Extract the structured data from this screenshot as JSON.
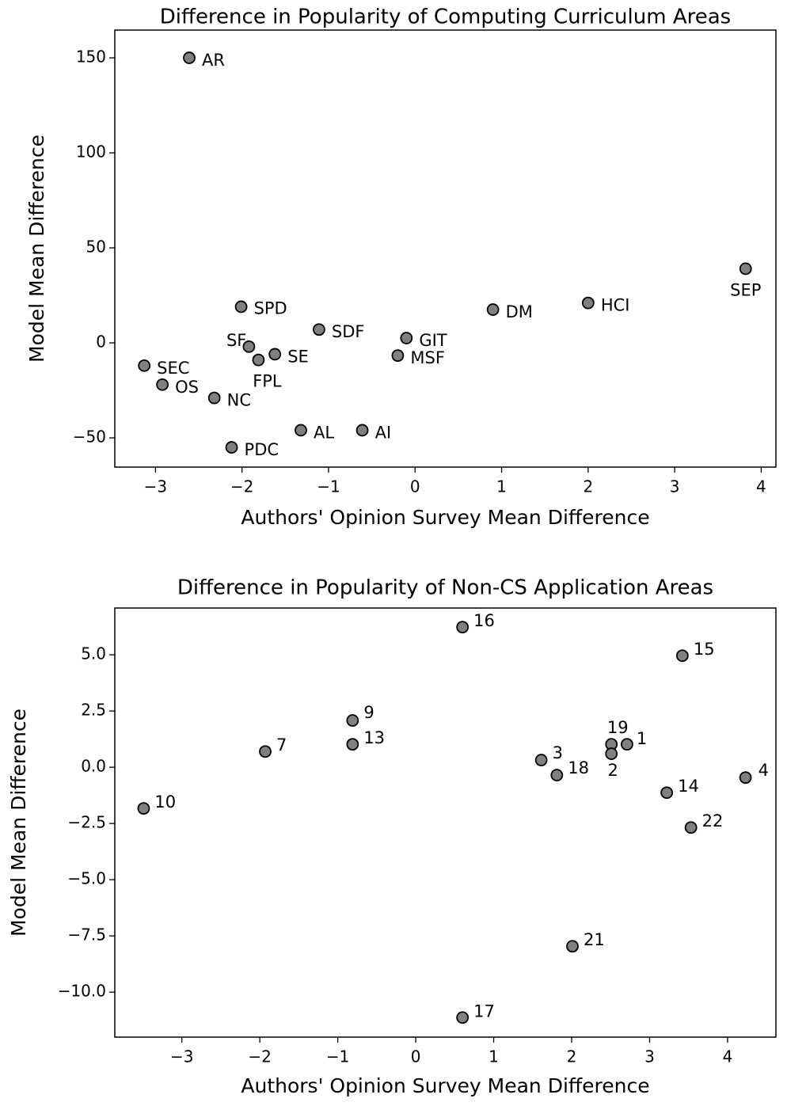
{
  "chart_data": [
    {
      "type": "scatter",
      "title": "Difference in Popularity of Computing Curriculum Areas",
      "xlabel": "Authors' Opinion Survey Mean Difference",
      "ylabel": "Model Mean Difference",
      "labels": [
        "AR",
        "SPD",
        "SDF",
        "DM",
        "HCI",
        "SEP",
        "GIT",
        "MSF",
        "SF",
        "SE",
        "FPL",
        "SEC",
        "OS",
        "NC",
        "AL",
        "AI",
        "PDC"
      ],
      "x": [
        -2.61,
        -2.01,
        -1.11,
        0.9,
        2.0,
        3.82,
        -0.1,
        -0.2,
        -1.92,
        -1.62,
        -1.81,
        -3.13,
        -2.92,
        -2.32,
        -1.32,
        -0.61,
        -2.12
      ],
      "y": [
        150,
        19,
        7,
        17.5,
        21,
        39,
        2.5,
        -6.7,
        -2,
        -6,
        -9,
        -12,
        -22,
        -29,
        -46,
        -46,
        -55
      ],
      "color": "#808080",
      "xlim": [
        -3.47,
        4.17
      ],
      "ylim": [
        -65.4,
        164.6
      ],
      "xticks": [
        {
          "value": -3,
          "label": "−3"
        },
        {
          "value": -2,
          "label": "−2"
        },
        {
          "value": -1,
          "label": "−1"
        },
        0,
        1,
        2,
        3,
        4
      ],
      "yticks": [
        {
          "value": -50,
          "label": "−50"
        },
        0,
        50,
        100,
        150
      ]
    },
    {
      "type": "scatter",
      "title": "Difference in Popularity of Non-CS Application Areas",
      "xlabel": "Authors' Opinion Survey Mean Difference",
      "ylabel": "Model Mean Difference",
      "labels": [
        "16",
        "15",
        "9",
        "13",
        "7",
        "19",
        "1",
        "2",
        "3",
        "18",
        "4",
        "14",
        "22",
        "10",
        "21",
        "17"
      ],
      "x": [
        0.6,
        3.42,
        -0.81,
        -0.81,
        -1.93,
        2.51,
        2.71,
        2.51,
        1.61,
        1.81,
        4.23,
        3.22,
        3.53,
        -3.49,
        2.01,
        0.6
      ],
      "y": [
        6.23,
        4.96,
        2.08,
        1.02,
        0.7,
        1.02,
        1.02,
        0.6,
        0.32,
        -0.35,
        -0.46,
        -1.13,
        -2.68,
        -1.83,
        -7.96,
        -11.13
      ],
      "color": "#808080",
      "xlim": [
        -3.86,
        4.62
      ],
      "ylim": [
        -12.0,
        7.08
      ],
      "xticks": [
        {
          "value": -3,
          "label": "−3"
        },
        {
          "value": -2,
          "label": "−2"
        },
        {
          "value": -1,
          "label": "−1"
        },
        0,
        1,
        2,
        3,
        4
      ],
      "yticks": [
        {
          "value": -10,
          "label": "−10.0"
        },
        {
          "value": -7.5,
          "label": "−7.5"
        },
        {
          "value": -5,
          "label": "−5.0"
        },
        {
          "value": -2.5,
          "label": "−2.5"
        },
        {
          "value": 0,
          "label": "0.0"
        },
        2.5,
        {
          "value": 5,
          "label": "5.0"
        }
      ]
    }
  ]
}
